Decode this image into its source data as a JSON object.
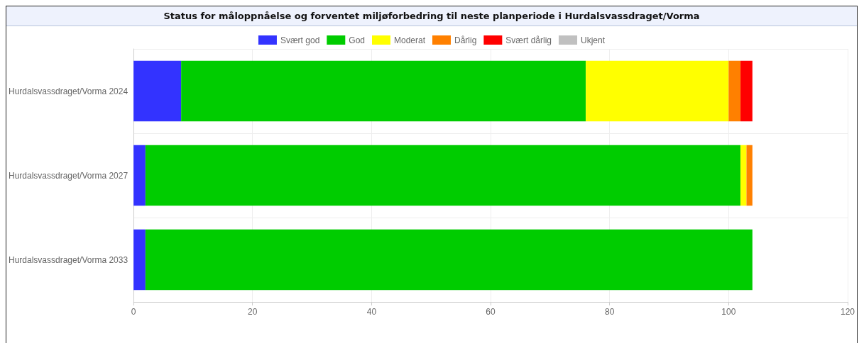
{
  "chart_data": {
    "type": "bar",
    "title": "Status for måloppnåelse og forventet miljøforbedring til neste planperiode i Hurdalsvassdraget/Vorma",
    "orientation": "horizontal",
    "stacked": true,
    "categories": [
      "Hurdalsvassdraget/Vorma 2024",
      "Hurdalsvassdraget/Vorma 2027",
      "Hurdalsvassdraget/Vorma 2033"
    ],
    "series": [
      {
        "name": "Svært god",
        "color": "#3333ff",
        "values": [
          8,
          2,
          2
        ]
      },
      {
        "name": "God",
        "color": "#00cc00",
        "values": [
          68,
          100,
          102
        ]
      },
      {
        "name": "Moderat",
        "color": "#ffff00",
        "values": [
          24,
          1,
          0
        ]
      },
      {
        "name": "Dårlig",
        "color": "#ff8000",
        "values": [
          2,
          1,
          0
        ]
      },
      {
        "name": "Svært dårlig",
        "color": "#ff0000",
        "values": [
          2,
          0,
          0
        ]
      },
      {
        "name": "Ukjent",
        "color": "#c0c0c0",
        "values": [
          0,
          0,
          0
        ]
      }
    ],
    "xlim": [
      0,
      120
    ],
    "xticks": [
      0,
      20,
      40,
      60,
      80,
      100,
      120
    ],
    "grid": true,
    "legend": "top"
  }
}
